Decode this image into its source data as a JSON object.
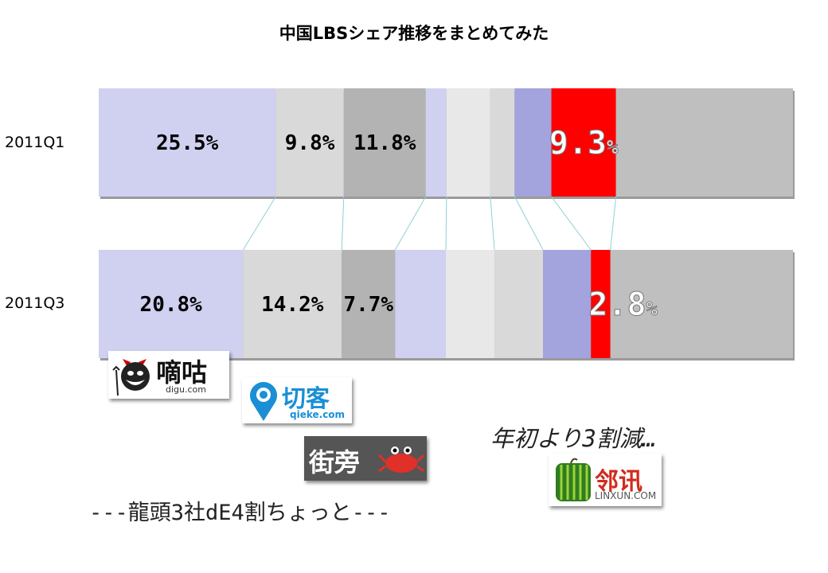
{
  "title": "中国LBSシェア推移をまとめてみた",
  "rows": [
    "2011Q1",
    "2011Q3"
  ],
  "chart_data": {
    "type": "bar",
    "orientation": "horizontal",
    "stacked": true,
    "normalized_to": 100,
    "title": "中国LBSシェア推移をまとめてみた",
    "categories": [
      "2011Q1",
      "2011Q3"
    ],
    "series": [
      {
        "name": "",
        "values": [
          25.5,
          20.8
        ],
        "labels": [
          "25.5%",
          "20.8%"
        ],
        "color": "#d0d0f0"
      },
      {
        "name": "",
        "values": [
          9.8,
          14.2
        ],
        "labels": [
          "9.8%",
          "14.2%"
        ],
        "color": "#d9d9d9"
      },
      {
        "name": "",
        "values": [
          11.8,
          7.7
        ],
        "labels": [
          "11.8%",
          "7.7%"
        ],
        "color": "#b3b3b3"
      },
      {
        "name": "",
        "values": [
          3.0,
          7.3
        ],
        "labels": [
          "",
          ""
        ],
        "color": "#d0d0f0"
      },
      {
        "name": "",
        "values": [
          6.3,
          7.0
        ],
        "labels": [
          "",
          ""
        ],
        "color": "#e8e8e8"
      },
      {
        "name": "",
        "values": [
          3.5,
          7.0
        ],
        "labels": [
          "",
          ""
        ],
        "color": "#d9d9d9"
      },
      {
        "name": "",
        "values": [
          5.3,
          6.9
        ],
        "labels": [
          "",
          ""
        ],
        "color": "#a3a3dd"
      },
      {
        "name": "",
        "values": [
          9.3,
          2.8
        ],
        "labels": [
          "9.3%",
          "2.8%"
        ],
        "color": "#ff0000",
        "emphasis": true
      },
      {
        "name": "",
        "values": [
          25.5,
          26.3
        ],
        "labels": [
          "",
          ""
        ],
        "color": "#bfbfbf"
      }
    ],
    "connector_lines": true,
    "grid": false,
    "legend": "none"
  },
  "logos": {
    "digu": {
      "main": "嘀咕",
      "sub": "digu.com"
    },
    "qieke": {
      "main": "切客",
      "sub": "qieke.com"
    },
    "jiepang": {
      "main": "街旁"
    },
    "linxun": {
      "main": "邻讯",
      "sub": "LINXUN.COM"
    }
  },
  "annotations": {
    "top3": "---龍頭3社dE4割ちょっと---",
    "decline": "年初より3割減…"
  },
  "colors": {
    "accent": "#ff0000",
    "label_dark": "#000000",
    "label_light": "#ffffff"
  }
}
